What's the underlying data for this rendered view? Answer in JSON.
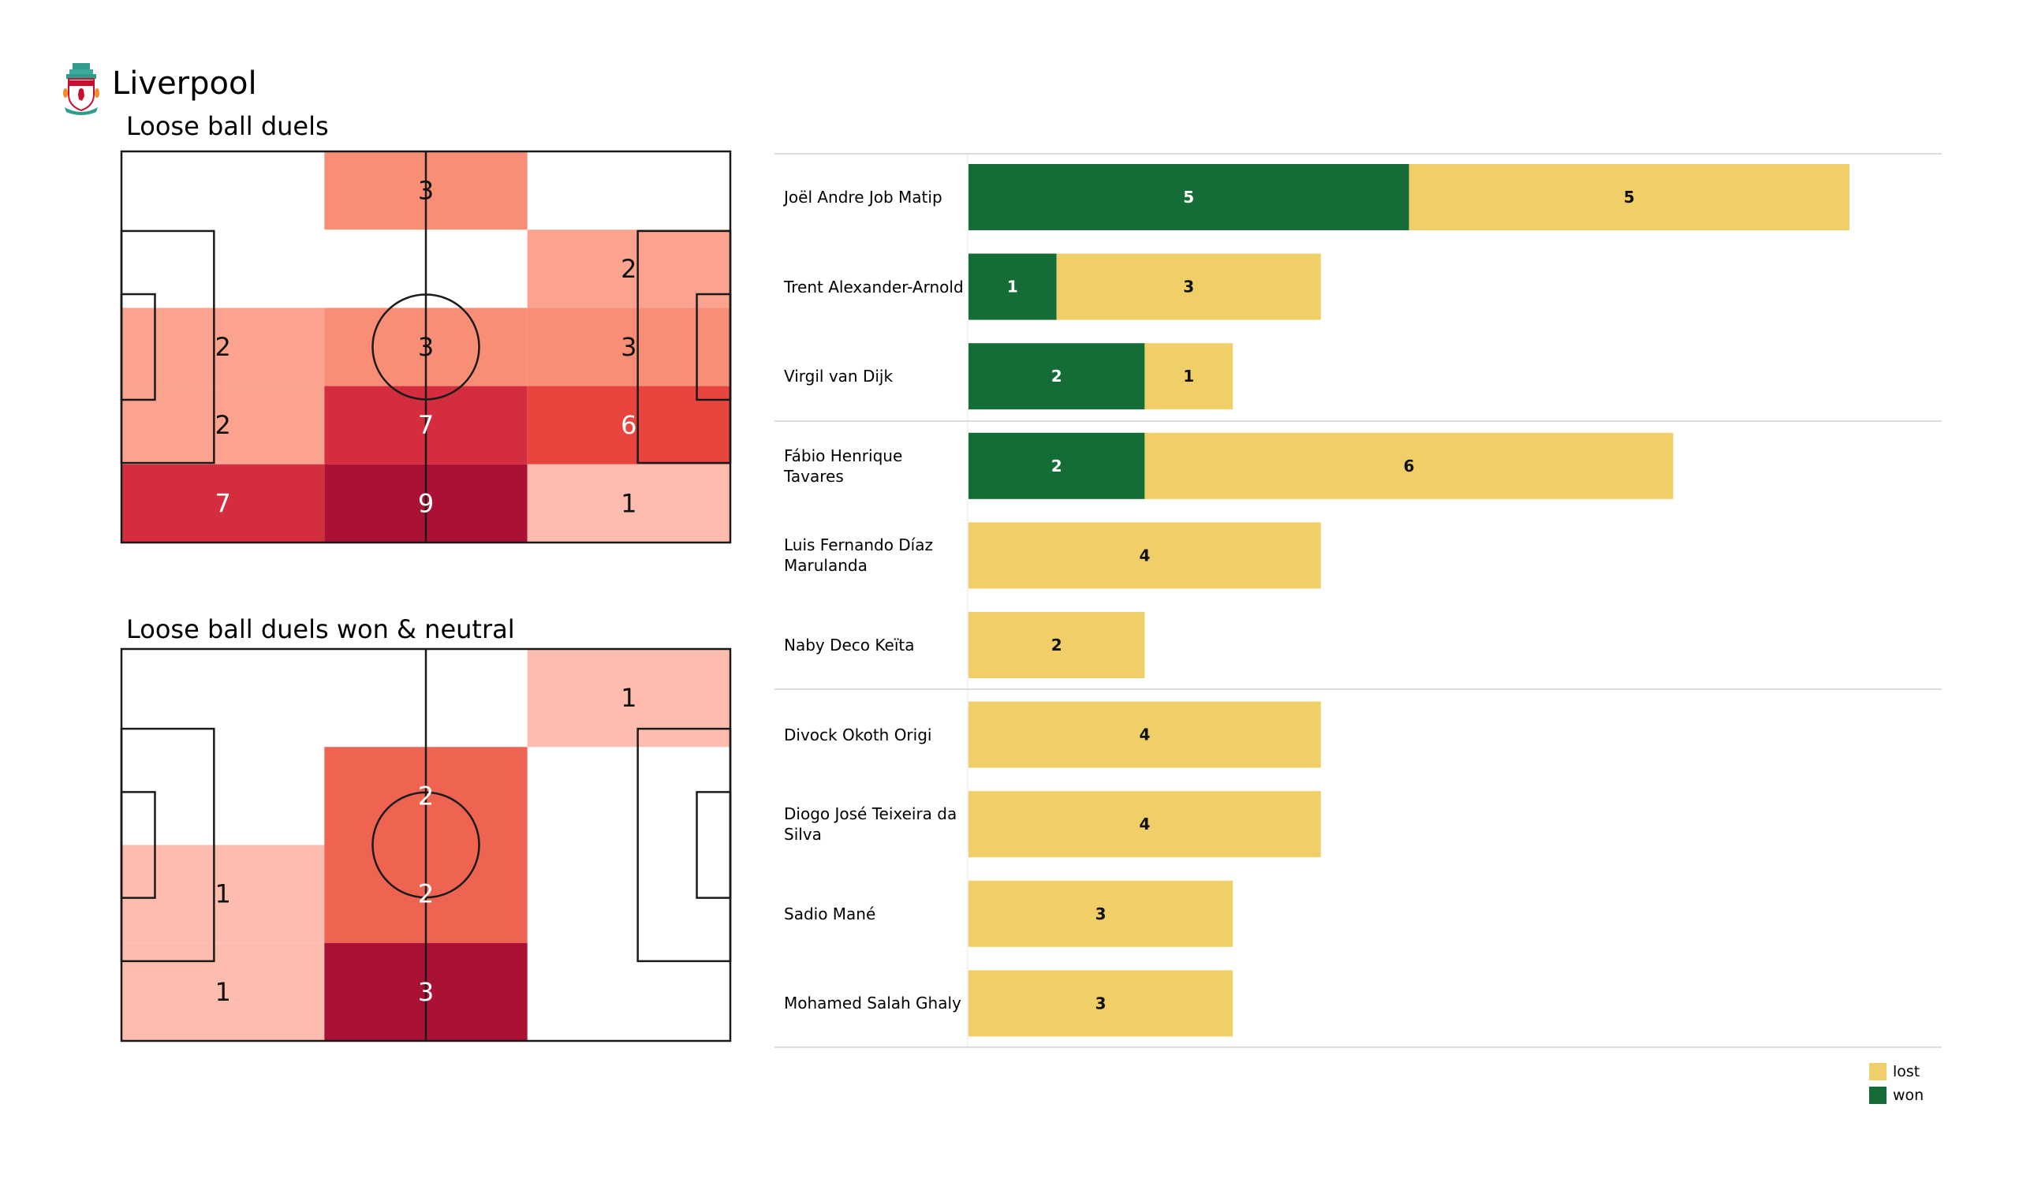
{
  "header": {
    "team": "Liverpool",
    "crest_icon": "liverpool-crest-icon"
  },
  "colors": {
    "won": "#146c37",
    "lost": "#f0cf68",
    "pitch_line": "#1a1a1a",
    "separator": "#dcdcdc",
    "heat_scale": [
      "#ffffff",
      "#fdbcad",
      "#fba38e",
      "#f98e76",
      "#f4694f",
      "#ec4a3a",
      "#e8453f",
      "#d42d3d",
      "#c01b37",
      "#ab1035"
    ]
  },
  "chart_data": [
    {
      "type": "heatmap",
      "title": "Loose ball duels",
      "rows": 5,
      "cols": 3,
      "values": [
        [
          0,
          3,
          0
        ],
        [
          0,
          0,
          2
        ],
        [
          2,
          3,
          3
        ],
        [
          2,
          7,
          6
        ],
        [
          7,
          9,
          1
        ]
      ],
      "max": 9
    },
    {
      "type": "heatmap",
      "title": "Loose ball duels won & neutral",
      "rows": 4,
      "cols": 3,
      "values": [
        [
          0,
          0,
          1
        ],
        [
          0,
          2,
          0
        ],
        [
          1,
          2,
          0
        ],
        [
          1,
          3,
          0
        ]
      ],
      "max": 3
    },
    {
      "type": "bar",
      "orientation": "horizontal",
      "stacked": true,
      "categories": [
        "Joël Andre Job Matip",
        "Trent Alexander-Arnold",
        "Virgil van Dijk",
        "Fábio Henrique Tavares",
        "Luis Fernando Díaz Marulanda",
        "Naby Deco Keïta",
        "Divock Okoth Origi",
        "Diogo José Teixeira da Silva",
        "Sadio Mané",
        "Mohamed  Salah Ghaly"
      ],
      "groups": [
        [
          0,
          1,
          2
        ],
        [
          3,
          4,
          5
        ],
        [
          6,
          7,
          8,
          9
        ]
      ],
      "series": [
        {
          "name": "won",
          "values": [
            5,
            1,
            2,
            2,
            0,
            0,
            0,
            0,
            0,
            0
          ]
        },
        {
          "name": "lost",
          "values": [
            5,
            3,
            1,
            6,
            4,
            2,
            4,
            4,
            3,
            3
          ]
        }
      ],
      "xlim": [
        0,
        10
      ],
      "legend": {
        "position": "bottom-right",
        "entries": [
          "lost",
          "won"
        ]
      }
    }
  ]
}
